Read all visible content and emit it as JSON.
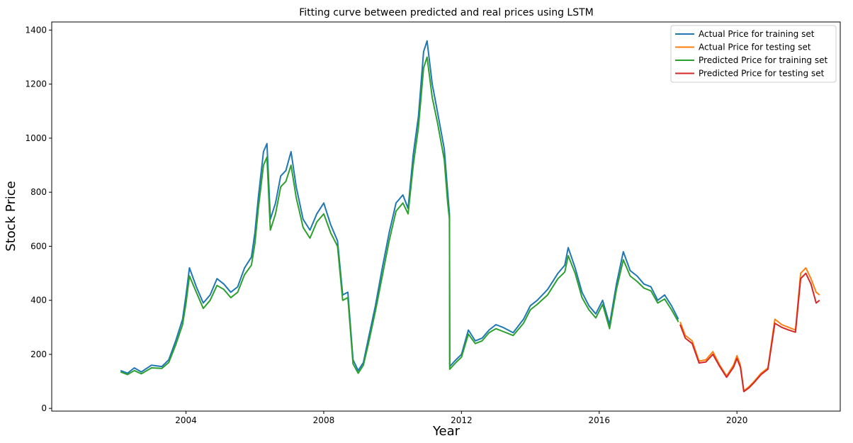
{
  "chart_data": {
    "type": "line",
    "title": "Fitting curve between predicted and real prices using LSTM",
    "xlabel": "Year",
    "ylabel": "Stock Price",
    "xlim": [
      2000.1,
      2023.0
    ],
    "ylim": [
      -10,
      1430
    ],
    "x_ticks": [
      2004,
      2008,
      2012,
      2016,
      2020
    ],
    "y_ticks": [
      0,
      200,
      400,
      600,
      800,
      1000,
      1200,
      1400
    ],
    "grid": false,
    "legend_position": "top-right",
    "series": [
      {
        "name": "Actual Price for training set",
        "color": "#1f77b4",
        "x": [
          2002.1,
          2002.3,
          2002.5,
          2002.7,
          2003.0,
          2003.3,
          2003.5,
          2003.7,
          2003.9,
          2004.0,
          2004.1,
          2004.3,
          2004.5,
          2004.7,
          2004.9,
          2005.1,
          2005.3,
          2005.5,
          2005.7,
          2005.9,
          2006.0,
          2006.1,
          2006.25,
          2006.35,
          2006.45,
          2006.6,
          2006.75,
          2006.9,
          2007.05,
          2007.2,
          2007.4,
          2007.6,
          2007.8,
          2008.0,
          2008.2,
          2008.4,
          2008.55,
          2008.7,
          2008.85,
          2009.0,
          2009.15,
          2009.3,
          2009.5,
          2009.7,
          2009.9,
          2010.1,
          2010.3,
          2010.45,
          2010.6,
          2010.75,
          2010.9,
          2011.0,
          2011.15,
          2011.3,
          2011.5,
          2011.6,
          2011.65,
          2011.66,
          2011.8,
          2012.0,
          2012.2,
          2012.4,
          2012.6,
          2012.8,
          2013.0,
          2013.2,
          2013.5,
          2013.8,
          2014.0,
          2014.2,
          2014.5,
          2014.8,
          2015.0,
          2015.1,
          2015.3,
          2015.5,
          2015.7,
          2015.9,
          2016.1,
          2016.3,
          2016.5,
          2016.7,
          2016.9,
          2017.1,
          2017.3,
          2017.5,
          2017.7,
          2017.9,
          2018.1,
          2018.3
        ],
        "y": [
          140,
          130,
          150,
          135,
          160,
          155,
          180,
          250,
          330,
          420,
          520,
          450,
          390,
          420,
          480,
          460,
          430,
          450,
          520,
          560,
          650,
          780,
          950,
          980,
          700,
          760,
          860,
          880,
          950,
          820,
          700,
          660,
          720,
          760,
          680,
          620,
          420,
          430,
          180,
          140,
          170,
          260,
          380,
          520,
          650,
          760,
          790,
          740,
          940,
          1080,
          1320,
          1360,
          1200,
          1100,
          960,
          800,
          720,
          155,
          175,
          200,
          290,
          250,
          260,
          290,
          310,
          300,
          280,
          330,
          380,
          400,
          440,
          500,
          530,
          595,
          520,
          430,
          380,
          350,
          400,
          310,
          460,
          580,
          510,
          490,
          460,
          450,
          400,
          420,
          380,
          330
        ]
      },
      {
        "name": "Actual Price for testing set",
        "color": "#ff7f0e",
        "x": [
          2018.35,
          2018.5,
          2018.7,
          2018.9,
          2019.1,
          2019.3,
          2019.5,
          2019.7,
          2019.9,
          2020.0,
          2020.1,
          2020.2,
          2020.35,
          2020.5,
          2020.7,
          2020.9,
          2021.1,
          2021.3,
          2021.5,
          2021.7,
          2021.85,
          2022.0,
          2022.15,
          2022.3,
          2022.4
        ],
        "y": [
          320,
          270,
          250,
          175,
          180,
          210,
          160,
          120,
          160,
          195,
          160,
          65,
          80,
          100,
          130,
          150,
          330,
          310,
          300,
          290,
          500,
          520,
          480,
          430,
          420
        ]
      },
      {
        "name": "Predicted Price for training set",
        "color": "#2ca02c",
        "x": [
          2002.1,
          2002.3,
          2002.5,
          2002.7,
          2003.0,
          2003.3,
          2003.5,
          2003.7,
          2003.9,
          2004.0,
          2004.1,
          2004.3,
          2004.5,
          2004.7,
          2004.9,
          2005.1,
          2005.3,
          2005.5,
          2005.7,
          2005.9,
          2006.0,
          2006.1,
          2006.25,
          2006.35,
          2006.45,
          2006.6,
          2006.75,
          2006.9,
          2007.05,
          2007.2,
          2007.4,
          2007.6,
          2007.8,
          2008.0,
          2008.2,
          2008.4,
          2008.55,
          2008.7,
          2008.85,
          2009.0,
          2009.15,
          2009.3,
          2009.5,
          2009.7,
          2009.9,
          2010.1,
          2010.3,
          2010.45,
          2010.6,
          2010.75,
          2010.9,
          2011.0,
          2011.15,
          2011.3,
          2011.5,
          2011.6,
          2011.65,
          2011.66,
          2011.8,
          2012.0,
          2012.2,
          2012.4,
          2012.6,
          2012.8,
          2013.0,
          2013.2,
          2013.5,
          2013.8,
          2014.0,
          2014.2,
          2014.5,
          2014.8,
          2015.0,
          2015.1,
          2015.3,
          2015.5,
          2015.7,
          2015.9,
          2016.1,
          2016.3,
          2016.5,
          2016.7,
          2016.9,
          2017.1,
          2017.3,
          2017.5,
          2017.7,
          2017.9,
          2018.1,
          2018.3
        ],
        "y": [
          135,
          125,
          140,
          128,
          150,
          148,
          170,
          235,
          310,
          390,
          490,
          430,
          370,
          400,
          455,
          440,
          410,
          430,
          495,
          530,
          610,
          740,
          900,
          930,
          660,
          720,
          820,
          840,
          900,
          780,
          670,
          630,
          690,
          720,
          650,
          600,
          400,
          410,
          165,
          130,
          160,
          240,
          360,
          490,
          620,
          730,
          760,
          720,
          900,
          1040,
          1260,
          1300,
          1150,
          1060,
          920,
          760,
          700,
          145,
          165,
          190,
          275,
          240,
          250,
          280,
          295,
          285,
          270,
          315,
          365,
          385,
          420,
          480,
          505,
          565,
          500,
          410,
          365,
          335,
          385,
          295,
          440,
          550,
          490,
          470,
          445,
          435,
          390,
          405,
          365,
          320
        ]
      },
      {
        "name": "Predicted Price for testing set",
        "color": "#d62728",
        "x": [
          2018.35,
          2018.5,
          2018.7,
          2018.9,
          2019.1,
          2019.3,
          2019.5,
          2019.7,
          2019.9,
          2020.0,
          2020.1,
          2020.2,
          2020.35,
          2020.5,
          2020.7,
          2020.9,
          2021.1,
          2021.3,
          2021.5,
          2021.7,
          2021.85,
          2022.0,
          2022.15,
          2022.3,
          2022.4
        ],
        "y": [
          310,
          260,
          240,
          168,
          172,
          200,
          155,
          115,
          152,
          185,
          152,
          62,
          76,
          96,
          125,
          145,
          315,
          300,
          290,
          282,
          480,
          500,
          460,
          390,
          400
        ]
      }
    ]
  }
}
